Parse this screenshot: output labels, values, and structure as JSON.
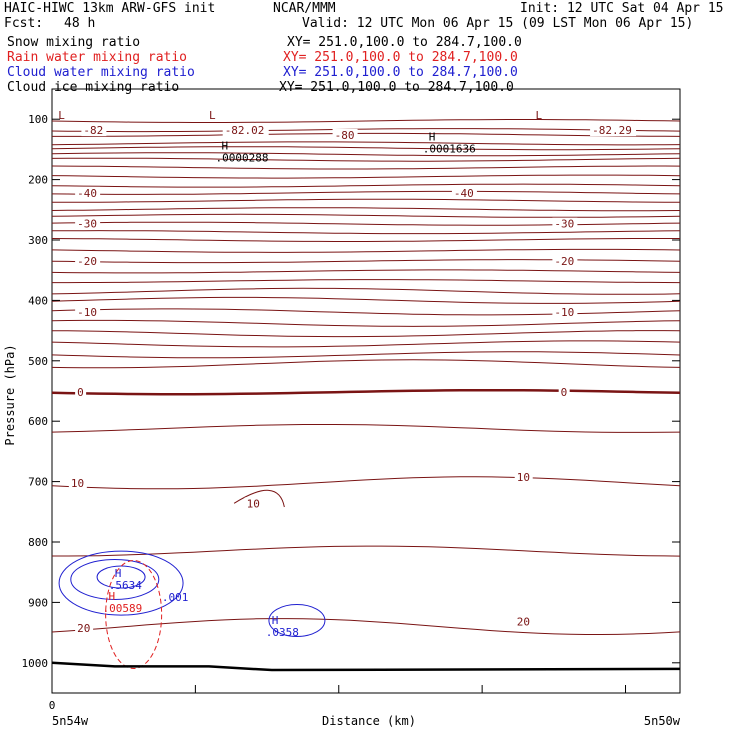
{
  "header": {
    "title": "HAIC-HIWC 13km ARW-GFS init",
    "org": "NCAR/MMM",
    "init": "Init: 12 UTC Sat 04 Apr 15",
    "fcst_label": "Fcst:",
    "fcst_value": "48 h",
    "valid": "Valid: 12 UTC Mon 06 Apr 15 (09 LST Mon 06 Apr 15)"
  },
  "legend": [
    {
      "label": "Snow mixing ratio",
      "xy": "XY= 251.0,100.0 to 284.7,100.0",
      "color": "#000000"
    },
    {
      "label": "Rain water mixing ratio",
      "xy": "XY= 251.0,100.0 to 284.7,100.0",
      "color": "#e02020"
    },
    {
      "label": "Cloud water mixing ratio",
      "xy": "XY= 251.0,100.0 to 284.7,100.0",
      "color": "#2020d0"
    },
    {
      "label": "Cloud ice mixing ratio",
      "xy": "XY= 251.0,100.0 to 284.7,100.0",
      "color": "#000000"
    }
  ],
  "chart_data": {
    "type": "line",
    "xlabel": "Distance (km)",
    "ylabel": "Pressure (hPa)",
    "x_tick_labels": [
      "0"
    ],
    "x_end_labels": [
      "5n54w",
      "5n50w"
    ],
    "y_ticks": [
      100,
      200,
      300,
      400,
      500,
      600,
      700,
      800,
      900,
      1000
    ],
    "ylim": [
      1050,
      50
    ],
    "y_scale": "linear",
    "colors": {
      "temperature": "#7a1414",
      "rain": "#e02020",
      "cloud": "#2020d0",
      "ground": "#000000"
    },
    "temperature_labels": [
      {
        "text": "-82",
        "p": 118,
        "fx": 0.05
      },
      {
        "text": "-82.02",
        "p": 118,
        "fx": 0.275
      },
      {
        "text": "-80",
        "p": 126,
        "fx": 0.45
      },
      {
        "text": "-82.29",
        "p": 118,
        "fx": 0.86
      },
      {
        "text": "-40",
        "p": 222,
        "fx": 0.04
      },
      {
        "text": "-40",
        "p": 222,
        "fx": 0.64
      },
      {
        "text": "-30",
        "p": 273,
        "fx": 0.04
      },
      {
        "text": "-30",
        "p": 273,
        "fx": 0.8
      },
      {
        "text": "-20",
        "p": 335,
        "fx": 0.04
      },
      {
        "text": "-20",
        "p": 335,
        "fx": 0.8
      },
      {
        "text": "-10",
        "p": 419,
        "fx": 0.04
      },
      {
        "text": "-10",
        "p": 419,
        "fx": 0.8
      },
      {
        "text": "0",
        "p": 552,
        "fx": 0.04
      },
      {
        "text": "0",
        "p": 552,
        "fx": 0.81
      },
      {
        "text": "10",
        "p": 702,
        "fx": 0.03
      },
      {
        "text": "10",
        "p": 692,
        "fx": 0.74
      },
      {
        "text": "10",
        "p": 736,
        "fx": 0.31
      },
      {
        "text": "20",
        "p": 942,
        "fx": 0.04
      },
      {
        "text": "20",
        "p": 932,
        "fx": 0.74
      }
    ],
    "extrema": [
      {
        "kind": "L",
        "value": "",
        "p": 100,
        "fx": 0.01
      },
      {
        "kind": "L",
        "value": "",
        "p": 100,
        "fx": 0.25
      },
      {
        "kind": "L",
        "value": "",
        "p": 100,
        "fx": 0.77
      },
      {
        "kind": "H",
        "value": ".0000288",
        "p": 150,
        "fx": 0.27
      },
      {
        "kind": "H",
        "value": ".0001636",
        "p": 135,
        "fx": 0.6
      },
      {
        "kind": "H",
        "value": ".5634",
        "p": 858,
        "fx": 0.1
      },
      {
        "kind": "H",
        "value": ".00589",
        "p": 896,
        "fx": 0.09
      },
      {
        "kind": "H",
        "value": ".0358",
        "p": 936,
        "fx": 0.35
      }
    ],
    "cloud_labels": [
      {
        "text": ".001",
        "p": 898,
        "fx": 0.175
      }
    ]
  }
}
